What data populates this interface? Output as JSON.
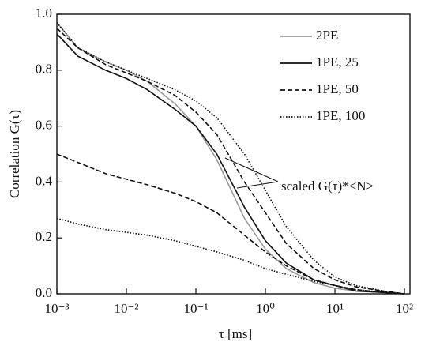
{
  "chart_data": {
    "type": "line",
    "x_label": "τ [ms]",
    "y_label": "Correlation G(τ)",
    "annotation": "scaled G(τ)*<N>",
    "xscale": "log",
    "legend": "upper right",
    "xlim": [
      0.001,
      120
    ],
    "ylim": [
      0,
      1
    ],
    "xticks": [
      {
        "value": 0.001,
        "label": "10⁻³"
      },
      {
        "value": 0.01,
        "label": "10⁻²"
      },
      {
        "value": 0.1,
        "label": "10⁻¹"
      },
      {
        "value": 1,
        "label": "10⁰"
      },
      {
        "value": 10,
        "label": "10¹"
      },
      {
        "value": 100,
        "label": "10²"
      }
    ],
    "yticks": [
      {
        "value": 0,
        "label": "0.0"
      },
      0.2,
      0.4,
      0.6,
      0.8,
      {
        "value": 1,
        "label": "1.0"
      }
    ],
    "x": [
      0.001,
      0.002,
      0.005,
      0.01,
      0.02,
      0.05,
      0.1,
      0.2,
      0.5,
      1,
      2,
      5,
      10,
      20,
      50,
      100
    ],
    "series": [
      {
        "name": "2PE",
        "color": "#999999",
        "dash": "solid",
        "values": [
          0.97,
          0.88,
          0.83,
          0.8,
          0.76,
          0.68,
          0.6,
          0.48,
          0.27,
          0.16,
          0.09,
          0.04,
          0.02,
          0.01,
          0.005,
          0
        ]
      },
      {
        "name": "1PE, 25",
        "color": "#111111",
        "dash": "solid",
        "values": [
          0.93,
          0.85,
          0.8,
          0.77,
          0.73,
          0.66,
          0.6,
          0.5,
          0.31,
          0.19,
          0.11,
          0.05,
          0.03,
          0.01,
          0.005,
          0
        ]
      },
      {
        "name": "1PE, 50",
        "color": "#111111",
        "dash": "dashed",
        "values": [
          0.5,
          0.47,
          0.43,
          0.41,
          0.39,
          0.36,
          0.33,
          0.29,
          0.21,
          0.15,
          0.1,
          0.05,
          0.03,
          0.015,
          0.005,
          0
        ]
      },
      {
        "name": "1PE, 100",
        "color": "#111111",
        "dash": "dotted",
        "values": [
          0.27,
          0.25,
          0.23,
          0.22,
          0.21,
          0.19,
          0.17,
          0.15,
          0.12,
          0.09,
          0.07,
          0.045,
          0.03,
          0.015,
          0.006,
          0
        ]
      }
    ],
    "scaled": [
      {
        "color": "#111111",
        "dash": "dashed",
        "values": [
          0.95,
          0.88,
          0.82,
          0.79,
          0.76,
          0.71,
          0.65,
          0.57,
          0.4,
          0.29,
          0.18,
          0.09,
          0.05,
          0.025,
          0.01,
          0
        ]
      },
      {
        "color": "#111111",
        "dash": "dotted",
        "values": [
          0.97,
          0.88,
          0.83,
          0.8,
          0.77,
          0.73,
          0.69,
          0.63,
          0.5,
          0.37,
          0.24,
          0.12,
          0.06,
          0.03,
          0.01,
          0
        ]
      }
    ]
  }
}
